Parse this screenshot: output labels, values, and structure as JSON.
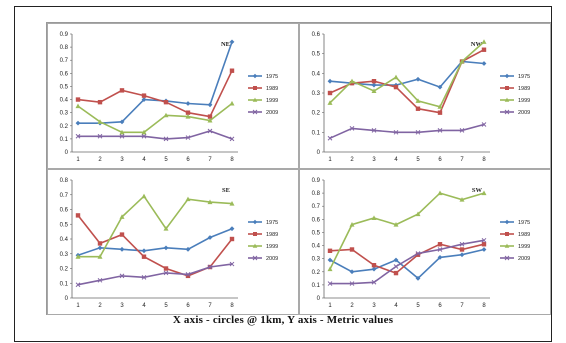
{
  "caption": "X axis - circles @ 1km, Y axis - Metric values",
  "colors": {
    "1975": "#4a7ebb",
    "1989": "#c0504d",
    "1999": "#9bbb59",
    "2009": "#8064a2"
  },
  "chart_data": [
    {
      "type": "line",
      "title": "NE",
      "categories": [
        "1",
        "2",
        "3",
        "4",
        "5",
        "6",
        "7",
        "8"
      ],
      "ylim": [
        0,
        0.9
      ],
      "yticks": [
        "0",
        "0.1",
        "0.2",
        "0.3",
        "0.4",
        "0.5",
        "0.6",
        "0.7",
        "0.8",
        "0.9"
      ],
      "grid": false,
      "legend": "right",
      "series": [
        {
          "name": "1975",
          "values": [
            0.22,
            0.22,
            0.23,
            0.4,
            0.39,
            0.37,
            0.36,
            0.84
          ]
        },
        {
          "name": "1989",
          "values": [
            0.4,
            0.38,
            0.47,
            0.43,
            0.38,
            0.3,
            0.27,
            0.62
          ]
        },
        {
          "name": "1999",
          "values": [
            0.35,
            0.23,
            0.15,
            0.15,
            0.28,
            0.27,
            0.24,
            0.37
          ]
        },
        {
          "name": "2009",
          "values": [
            0.12,
            0.12,
            0.12,
            0.12,
            0.1,
            0.11,
            0.16,
            0.1
          ]
        }
      ]
    },
    {
      "type": "line",
      "title": "NW",
      "categories": [
        "1",
        "2",
        "3",
        "4",
        "5",
        "6",
        "7",
        "8"
      ],
      "ylim": [
        0,
        0.6
      ],
      "yticks": [
        "0",
        "0.1",
        "0.2",
        "0.3",
        "0.4",
        "0.5",
        "0.6"
      ],
      "grid": false,
      "legend": "right",
      "series": [
        {
          "name": "1975",
          "values": [
            0.36,
            0.35,
            0.34,
            0.34,
            0.37,
            0.33,
            0.46,
            0.45
          ]
        },
        {
          "name": "1989",
          "values": [
            0.3,
            0.35,
            0.36,
            0.33,
            0.22,
            0.2,
            0.46,
            0.52
          ]
        },
        {
          "name": "1999",
          "values": [
            0.25,
            0.36,
            0.31,
            0.38,
            0.26,
            0.23,
            0.46,
            0.56
          ]
        },
        {
          "name": "2009",
          "values": [
            0.07,
            0.12,
            0.11,
            0.1,
            0.1,
            0.11,
            0.11,
            0.14
          ]
        }
      ]
    },
    {
      "type": "line",
      "title": "SE",
      "categories": [
        "1",
        "2",
        "3",
        "4",
        "5",
        "6",
        "7",
        "8"
      ],
      "ylim": [
        0,
        0.8
      ],
      "yticks": [
        "0",
        "0.1",
        "0.2",
        "0.3",
        "0.4",
        "0.5",
        "0.6",
        "0.7",
        "0.8"
      ],
      "grid": false,
      "legend": "right",
      "series": [
        {
          "name": "1975",
          "values": [
            0.29,
            0.34,
            0.33,
            0.32,
            0.34,
            0.33,
            0.41,
            0.47
          ]
        },
        {
          "name": "1989",
          "values": [
            0.56,
            0.37,
            0.43,
            0.28,
            0.2,
            0.15,
            0.21,
            0.4
          ]
        },
        {
          "name": "1999",
          "values": [
            0.28,
            0.28,
            0.55,
            0.69,
            0.47,
            0.67,
            0.65,
            0.64
          ]
        },
        {
          "name": "2009",
          "values": [
            0.09,
            0.12,
            0.15,
            0.14,
            0.17,
            0.16,
            0.21,
            0.23
          ]
        }
      ]
    },
    {
      "type": "line",
      "title": "SW",
      "categories": [
        "1",
        "2",
        "3",
        "4",
        "5",
        "6",
        "7",
        "8"
      ],
      "ylim": [
        0,
        0.9
      ],
      "yticks": [
        "0",
        "0.1",
        "0.2",
        "0.3",
        "0.4",
        "0.5",
        "0.6",
        "0.7",
        "0.8",
        "0.9"
      ],
      "grid": false,
      "legend": "right",
      "series": [
        {
          "name": "1975",
          "values": [
            0.29,
            0.2,
            0.22,
            0.29,
            0.15,
            0.31,
            0.33,
            0.37
          ]
        },
        {
          "name": "1989",
          "values": [
            0.36,
            0.37,
            0.25,
            0.19,
            0.33,
            0.41,
            0.37,
            0.41
          ]
        },
        {
          "name": "1999",
          "values": [
            0.22,
            0.56,
            0.61,
            0.56,
            0.64,
            0.8,
            0.75,
            0.8
          ]
        },
        {
          "name": "2009",
          "values": [
            0.11,
            0.11,
            0.12,
            0.24,
            0.34,
            0.37,
            0.41,
            0.44
          ]
        }
      ]
    }
  ]
}
